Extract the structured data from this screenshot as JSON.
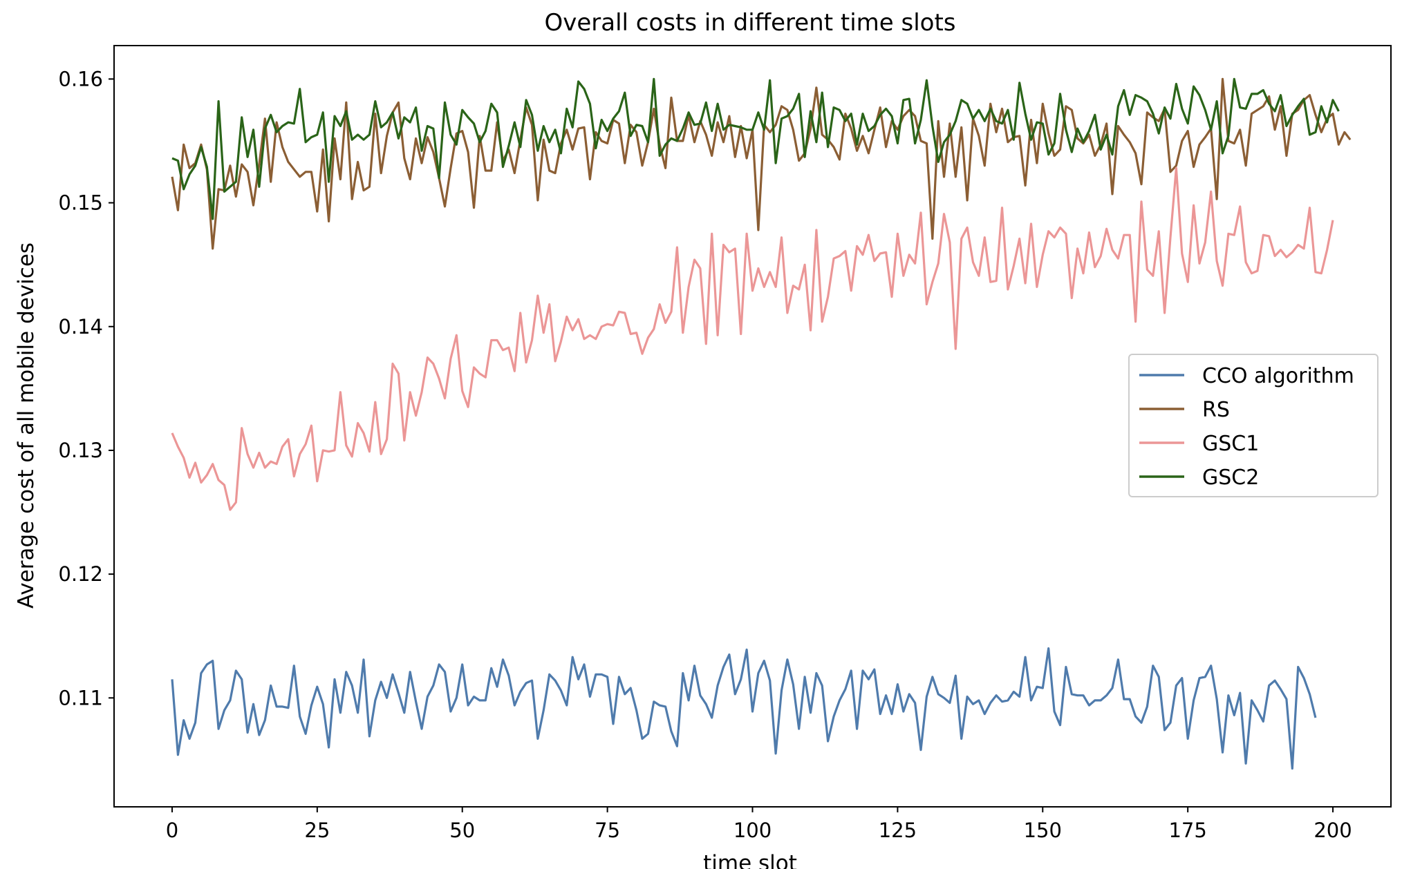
{
  "chart_data": {
    "type": "line",
    "title": "Overall costs in different time slots",
    "xlabel": "time slot",
    "ylabel": "Average cost of all mobile devices",
    "xlim": [
      -10,
      210
    ],
    "ylim": [
      0.1012,
      0.1627
    ],
    "xticks": [
      0,
      25,
      50,
      75,
      100,
      125,
      150,
      175,
      200
    ],
    "yticks": [
      0.11,
      0.12,
      0.13,
      0.14,
      0.15,
      0.16
    ],
    "ytick_labels": [
      "0.11",
      "0.12",
      "0.13",
      "0.14",
      "0.15",
      "0.16"
    ],
    "grid": false,
    "legend_position": "center-right",
    "series": [
      {
        "name": "CCO algorithm",
        "color": "#4f7bac",
        "values": [
          0.1115,
          0.1054,
          0.1082,
          0.1067,
          0.108,
          0.112,
          0.1127,
          0.113,
          0.1075,
          0.109,
          0.1098,
          0.1122,
          0.1115,
          0.1072,
          0.1095,
          0.107,
          0.1082,
          0.111,
          0.1093,
          0.1093,
          0.1092,
          0.1126,
          0.1085,
          0.1071,
          0.1094,
          0.1109,
          0.1095,
          0.106,
          0.1115,
          0.1088,
          0.1121,
          0.111,
          0.1088,
          0.1131,
          0.1069,
          0.1098,
          0.1113,
          0.11,
          0.1119,
          0.1104,
          0.1088,
          0.1121,
          0.1097,
          0.1075,
          0.1101,
          0.111,
          0.1127,
          0.1121,
          0.1089,
          0.11,
          0.1127,
          0.1094,
          0.1101,
          0.1098,
          0.1098,
          0.1124,
          0.1109,
          0.1131,
          0.1118,
          0.1094,
          0.1105,
          0.1112,
          0.1114,
          0.1067,
          0.109,
          0.1119,
          0.1114,
          0.1106,
          0.1094,
          0.1133,
          0.1115,
          0.1127,
          0.1101,
          0.1119,
          0.1119,
          0.1117,
          0.1079,
          0.1117,
          0.1103,
          0.1108,
          0.109,
          0.1067,
          0.1071,
          0.1097,
          0.1094,
          0.1093,
          0.1073,
          0.1061,
          0.112,
          0.1098,
          0.1126,
          0.1102,
          0.1095,
          0.1084,
          0.111,
          0.1125,
          0.1135,
          0.1103,
          0.1115,
          0.1139,
          0.1089,
          0.112,
          0.113,
          0.1114,
          0.1055,
          0.1106,
          0.1131,
          0.1111,
          0.1075,
          0.1117,
          0.1088,
          0.112,
          0.111,
          0.1065,
          0.1085,
          0.1098,
          0.1107,
          0.1122,
          0.1075,
          0.1122,
          0.1115,
          0.1123,
          0.1087,
          0.1102,
          0.1087,
          0.1111,
          0.1089,
          0.1103,
          0.1096,
          0.1058,
          0.1101,
          0.1117,
          0.1103,
          0.11,
          0.1096,
          0.1118,
          0.1067,
          0.1101,
          0.1095,
          0.1098,
          0.1087,
          0.1096,
          0.1102,
          0.1097,
          0.1098,
          0.1105,
          0.1101,
          0.1133,
          0.1098,
          0.1109,
          0.1108,
          0.114,
          0.1089,
          0.1078,
          0.1125,
          0.1103,
          0.1102,
          0.1102,
          0.1094,
          0.1098,
          0.1098,
          0.1102,
          0.1108,
          0.1131,
          0.1099,
          0.1099,
          0.1085,
          0.108,
          0.1093,
          0.1126,
          0.1117,
          0.1074,
          0.108,
          0.111,
          0.1116,
          0.1067,
          0.1098,
          0.1116,
          0.1117,
          0.1126,
          0.1099,
          0.1056,
          0.1102,
          0.1086,
          0.1104,
          0.1047,
          0.1098,
          0.109,
          0.1081,
          0.111,
          0.1114,
          0.1107,
          0.1099,
          0.1043,
          0.1125,
          0.1116,
          0.1103,
          0.1084
        ]
      },
      {
        "name": "RS",
        "color": "#8b5e34",
        "values": [
          0.1521,
          0.1494,
          0.1547,
          0.1528,
          0.1532,
          0.1547,
          0.1527,
          0.1463,
          0.1511,
          0.151,
          0.153,
          0.1505,
          0.1531,
          0.1525,
          0.1498,
          0.1531,
          0.1568,
          0.1517,
          0.1565,
          0.1545,
          0.1533,
          0.1527,
          0.1521,
          0.1525,
          0.1525,
          0.1493,
          0.1543,
          0.1485,
          0.1552,
          0.1519,
          0.1581,
          0.1503,
          0.1533,
          0.151,
          0.1513,
          0.1572,
          0.1524,
          0.1554,
          0.1573,
          0.1581,
          0.1536,
          0.1519,
          0.1552,
          0.1532,
          0.1553,
          0.1541,
          0.152,
          0.1497,
          0.1528,
          0.1556,
          0.1558,
          0.1541,
          0.1496,
          0.1554,
          0.1526,
          0.1526,
          0.1565,
          0.1534,
          0.1543,
          0.1524,
          0.1551,
          0.1577,
          0.1563,
          0.1502,
          0.1551,
          0.1526,
          0.1524,
          0.1548,
          0.1559,
          0.1543,
          0.156,
          0.1561,
          0.1519,
          0.1557,
          0.155,
          0.1548,
          0.1567,
          0.1564,
          0.1532,
          0.1563,
          0.1557,
          0.153,
          0.1549,
          0.1576,
          0.1547,
          0.1528,
          0.1585,
          0.155,
          0.155,
          0.1571,
          0.1549,
          0.1566,
          0.1555,
          0.1538,
          0.1565,
          0.1549,
          0.157,
          0.1537,
          0.1562,
          0.1536,
          0.1559,
          0.1478,
          0.1563,
          0.1557,
          0.1563,
          0.1578,
          0.1575,
          0.1559,
          0.1534,
          0.154,
          0.156,
          0.1593,
          0.1555,
          0.1551,
          0.1545,
          0.1535,
          0.1572,
          0.156,
          0.1542,
          0.1554,
          0.154,
          0.1559,
          0.1577,
          0.1545,
          0.1566,
          0.1559,
          0.157,
          0.1575,
          0.157,
          0.155,
          0.1548,
          0.1471,
          0.1566,
          0.1521,
          0.1564,
          0.1521,
          0.1561,
          0.1502,
          0.1568,
          0.1554,
          0.153,
          0.158,
          0.1557,
          0.1576,
          0.1549,
          0.1553,
          0.1554,
          0.1514,
          0.1567,
          0.1532,
          0.158,
          0.1556,
          0.1538,
          0.1543,
          0.1578,
          0.1575,
          0.1552,
          0.1548,
          0.1555,
          0.1538,
          0.1547,
          0.1564,
          0.1507,
          0.1562,
          0.1555,
          0.1549,
          0.154,
          0.1515,
          0.1573,
          0.1569,
          0.1566,
          0.1576,
          0.1525,
          0.153,
          0.155,
          0.1558,
          0.1529,
          0.1547,
          0.1553,
          0.156,
          0.1503,
          0.16,
          0.155,
          0.1548,
          0.1559,
          0.153,
          0.1572,
          0.1575,
          0.1578,
          0.1586,
          0.1559,
          0.1578,
          0.1538,
          0.1572,
          0.1575,
          0.1583,
          0.1587,
          0.1571,
          0.1557,
          0.1568,
          0.1572,
          0.1547,
          0.1557,
          0.1551
        ]
      },
      {
        "name": "GSC1",
        "color": "#eb9696",
        "values": [
          0.1314,
          0.1303,
          0.1294,
          0.1278,
          0.129,
          0.1274,
          0.128,
          0.1289,
          0.1276,
          0.1272,
          0.1252,
          0.1258,
          0.1318,
          0.1297,
          0.1286,
          0.1298,
          0.1286,
          0.1291,
          0.1289,
          0.1303,
          0.1309,
          0.1279,
          0.1297,
          0.1305,
          0.132,
          0.1275,
          0.13,
          0.1299,
          0.13,
          0.1347,
          0.1304,
          0.1295,
          0.1322,
          0.1314,
          0.1299,
          0.1339,
          0.1297,
          0.1309,
          0.137,
          0.1362,
          0.1308,
          0.1347,
          0.1328,
          0.1347,
          0.1375,
          0.137,
          0.1358,
          0.1342,
          0.1374,
          0.1393,
          0.1348,
          0.1335,
          0.1367,
          0.1362,
          0.1359,
          0.1389,
          0.1389,
          0.1381,
          0.1383,
          0.1364,
          0.1411,
          0.1371,
          0.1389,
          0.1425,
          0.1395,
          0.1418,
          0.1372,
          0.1388,
          0.1408,
          0.1397,
          0.1406,
          0.139,
          0.1393,
          0.139,
          0.14,
          0.1402,
          0.1401,
          0.1412,
          0.1411,
          0.1394,
          0.1395,
          0.1378,
          0.1391,
          0.1398,
          0.1418,
          0.1403,
          0.1412,
          0.1464,
          0.1395,
          0.1432,
          0.1454,
          0.1447,
          0.1386,
          0.1475,
          0.1393,
          0.1466,
          0.146,
          0.1463,
          0.1394,
          0.1475,
          0.1429,
          0.1447,
          0.1432,
          0.1444,
          0.1432,
          0.1472,
          0.1411,
          0.1433,
          0.143,
          0.145,
          0.1397,
          0.1478,
          0.1404,
          0.1424,
          0.1455,
          0.1457,
          0.1461,
          0.1429,
          0.1465,
          0.1458,
          0.1474,
          0.1453,
          0.1459,
          0.146,
          0.1424,
          0.1475,
          0.1441,
          0.1458,
          0.1451,
          0.1492,
          0.1418,
          0.1436,
          0.1451,
          0.1491,
          0.1468,
          0.1382,
          0.1471,
          0.148,
          0.1452,
          0.1441,
          0.1472,
          0.1436,
          0.1437,
          0.1496,
          0.143,
          0.1449,
          0.1471,
          0.1435,
          0.1483,
          0.1432,
          0.1458,
          0.1477,
          0.1472,
          0.148,
          0.1475,
          0.1423,
          0.1463,
          0.1443,
          0.1476,
          0.1448,
          0.1457,
          0.1479,
          0.1462,
          0.1455,
          0.1474,
          0.1474,
          0.1404,
          0.1501,
          0.1446,
          0.1441,
          0.1477,
          0.1411,
          0.1472,
          0.1528,
          0.1459,
          0.1436,
          0.1498,
          0.1451,
          0.1468,
          0.1509,
          0.1453,
          0.1433,
          0.1475,
          0.1474,
          0.1497,
          0.1452,
          0.1443,
          0.1445,
          0.1474,
          0.1473,
          0.1457,
          0.1462,
          0.1456,
          0.146,
          0.1466,
          0.1463,
          0.1496,
          0.1444,
          0.1443,
          0.1462,
          0.1486
        ]
      },
      {
        "name": "GSC2",
        "color": "#2a6418",
        "values": [
          0.1536,
          0.1534,
          0.1511,
          0.1523,
          0.153,
          0.1545,
          0.1529,
          0.1487,
          0.1582,
          0.1509,
          0.1513,
          0.1517,
          0.1569,
          0.1537,
          0.1559,
          0.1513,
          0.156,
          0.1571,
          0.1557,
          0.1562,
          0.1565,
          0.1564,
          0.1592,
          0.1549,
          0.1553,
          0.1555,
          0.1573,
          0.1517,
          0.157,
          0.1562,
          0.1574,
          0.1551,
          0.1555,
          0.1551,
          0.1555,
          0.1582,
          0.1561,
          0.1565,
          0.1573,
          0.1552,
          0.1569,
          0.1565,
          0.1577,
          0.1542,
          0.1562,
          0.156,
          0.152,
          0.1581,
          0.1555,
          0.1547,
          0.1575,
          0.1569,
          0.1564,
          0.1549,
          0.1558,
          0.158,
          0.1573,
          0.1529,
          0.1546,
          0.1565,
          0.1545,
          0.1583,
          0.1571,
          0.1542,
          0.1562,
          0.1549,
          0.1559,
          0.154,
          0.1576,
          0.1561,
          0.1598,
          0.1592,
          0.158,
          0.1544,
          0.1567,
          0.1558,
          0.1568,
          0.1574,
          0.1589,
          0.1554,
          0.1563,
          0.1562,
          0.1549,
          0.16,
          0.1538,
          0.1547,
          0.1552,
          0.155,
          0.156,
          0.1573,
          0.1563,
          0.1564,
          0.1581,
          0.1558,
          0.158,
          0.1559,
          0.1563,
          0.1562,
          0.1561,
          0.1559,
          0.1559,
          0.1573,
          0.1559,
          0.1599,
          0.1532,
          0.1568,
          0.157,
          0.1576,
          0.1588,
          0.1537,
          0.1574,
          0.1549,
          0.1589,
          0.1545,
          0.1577,
          0.1575,
          0.1566,
          0.1572,
          0.1547,
          0.1572,
          0.1558,
          0.1562,
          0.1571,
          0.1576,
          0.157,
          0.1548,
          0.1583,
          0.1584,
          0.1548,
          0.1567,
          0.1599,
          0.1562,
          0.1533,
          0.1549,
          0.1555,
          0.1566,
          0.1583,
          0.158,
          0.1568,
          0.1575,
          0.1566,
          0.1576,
          0.1566,
          0.1564,
          0.1575,
          0.1551,
          0.1597,
          0.1572,
          0.1551,
          0.1565,
          0.1564,
          0.1539,
          0.1548,
          0.1588,
          0.1559,
          0.1541,
          0.156,
          0.1549,
          0.1558,
          0.1571,
          0.1543,
          0.1555,
          0.1539,
          0.1578,
          0.1591,
          0.1571,
          0.1587,
          0.1585,
          0.1582,
          0.1572,
          0.1556,
          0.1577,
          0.1568,
          0.1596,
          0.1576,
          0.1564,
          0.1594,
          0.1587,
          0.1575,
          0.1559,
          0.1582,
          0.154,
          0.1554,
          0.16,
          0.1577,
          0.1576,
          0.1588,
          0.1588,
          0.1591,
          0.158,
          0.1574,
          0.1587,
          0.1562,
          0.1571,
          0.1578,
          0.1584,
          0.1555,
          0.1557,
          0.1578,
          0.1565,
          0.1583,
          0.1574
        ]
      }
    ]
  }
}
